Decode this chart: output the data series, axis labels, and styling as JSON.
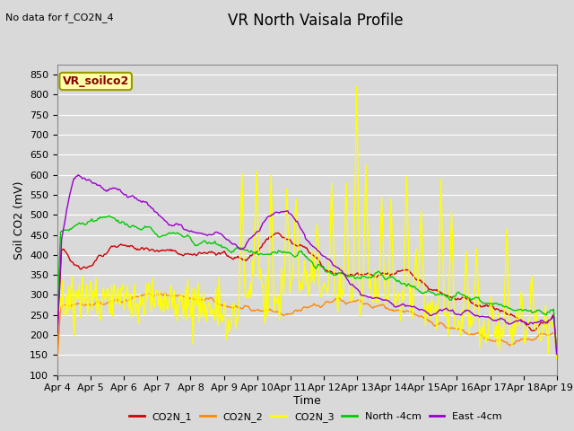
{
  "title": "VR North Vaisala Profile",
  "subtitle": "No data for f_CO2N_4",
  "box_label": "VR_soilco2",
  "xlabel": "Time",
  "ylabel": "Soil CO2 (mV)",
  "ylim": [
    100,
    875
  ],
  "yticks": [
    100,
    150,
    200,
    250,
    300,
    350,
    400,
    450,
    500,
    550,
    600,
    650,
    700,
    750,
    800,
    850
  ],
  "series_colors": {
    "CO2N_1": "#cc0000",
    "CO2N_2": "#ff8800",
    "CO2N_3": "#ffff00",
    "North_4cm": "#00cc00",
    "East_4cm": "#9900cc"
  },
  "background_color": "#d9d9d9",
  "grid_color": "#ffffff",
  "title_fontsize": 12,
  "axis_fontsize": 9,
  "tick_fontsize": 8
}
